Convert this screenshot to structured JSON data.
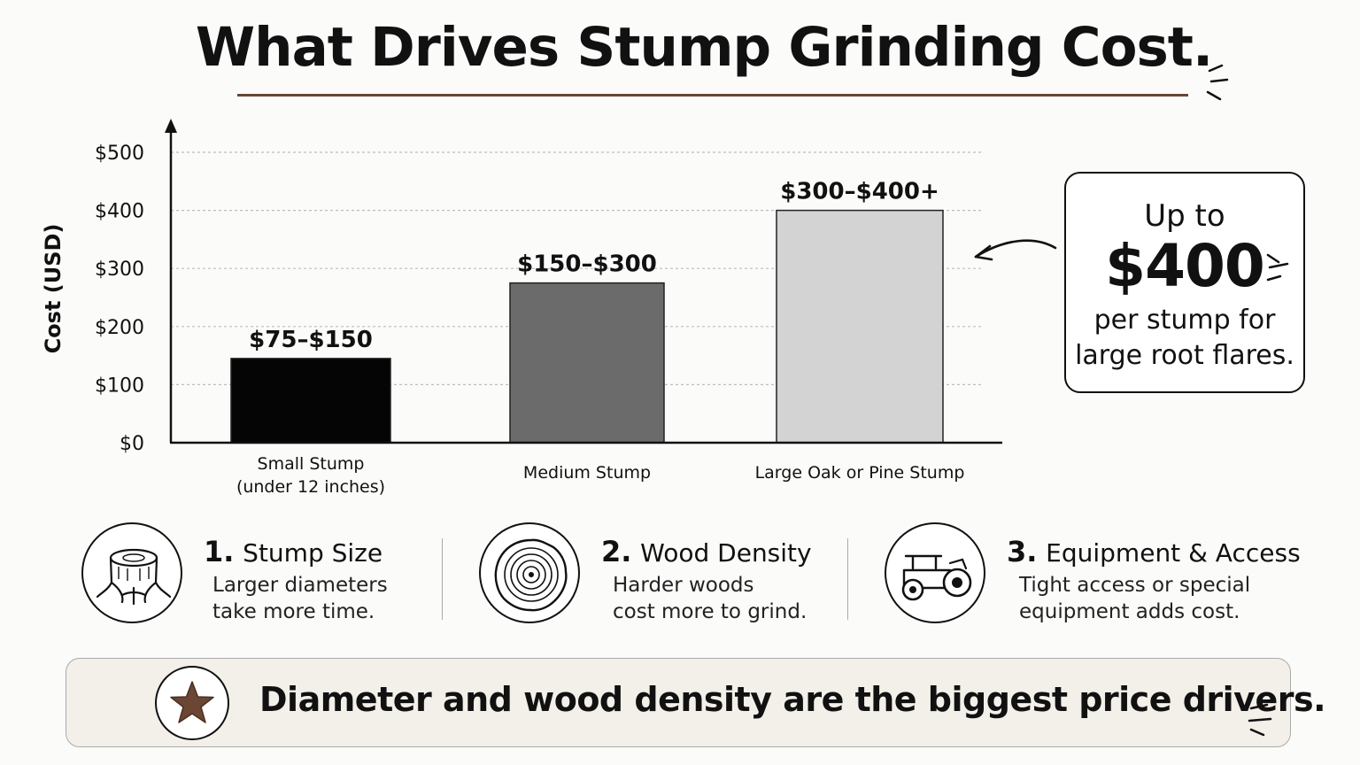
{
  "title": "What Drives Stump Grinding Cost.",
  "colors": {
    "accent_brown": "#6b4634",
    "banner_bg": "#f3efe9"
  },
  "chart_data": {
    "type": "bar",
    "ylabel": "Cost (USD)",
    "ylim": [
      0,
      500
    ],
    "yticks": [
      0,
      100,
      200,
      300,
      400,
      500
    ],
    "ytick_labels": [
      "$0",
      "$100",
      "$200",
      "$300",
      "$400",
      "$500"
    ],
    "grid": "horizontal dotted",
    "categories": [
      [
        "Small Stump",
        "(under 12 inches)"
      ],
      [
        "Medium Stump"
      ],
      [
        "Large Oak or Pine Stump"
      ]
    ],
    "values": [
      145,
      275,
      400
    ],
    "data_labels": [
      "$75–$150",
      "$150–$300",
      "$300–$400+"
    ],
    "bar_colors": [
      "#050505",
      "#6b6b6b",
      "#d3d3d3"
    ]
  },
  "callout": {
    "line1": "Up to",
    "amount": "$400",
    "line2": "per stump for",
    "line3": "large root flares."
  },
  "factors": [
    {
      "num": "1.",
      "name": "Stump Size",
      "desc1": "Larger diameters",
      "desc2": "take more time.",
      "icon": "stump-icon"
    },
    {
      "num": "2.",
      "name": "Wood Density",
      "desc1": "Harder woods",
      "desc2": "cost more to grind.",
      "icon": "tree-rings-icon"
    },
    {
      "num": "3.",
      "name": "Equipment & Access",
      "desc1": "Tight access or special",
      "desc2": "equipment adds cost.",
      "icon": "grinder-machine-icon"
    }
  ],
  "banner": {
    "text": "Diameter and wood density are the biggest price drivers.",
    "icon": "star-icon"
  }
}
